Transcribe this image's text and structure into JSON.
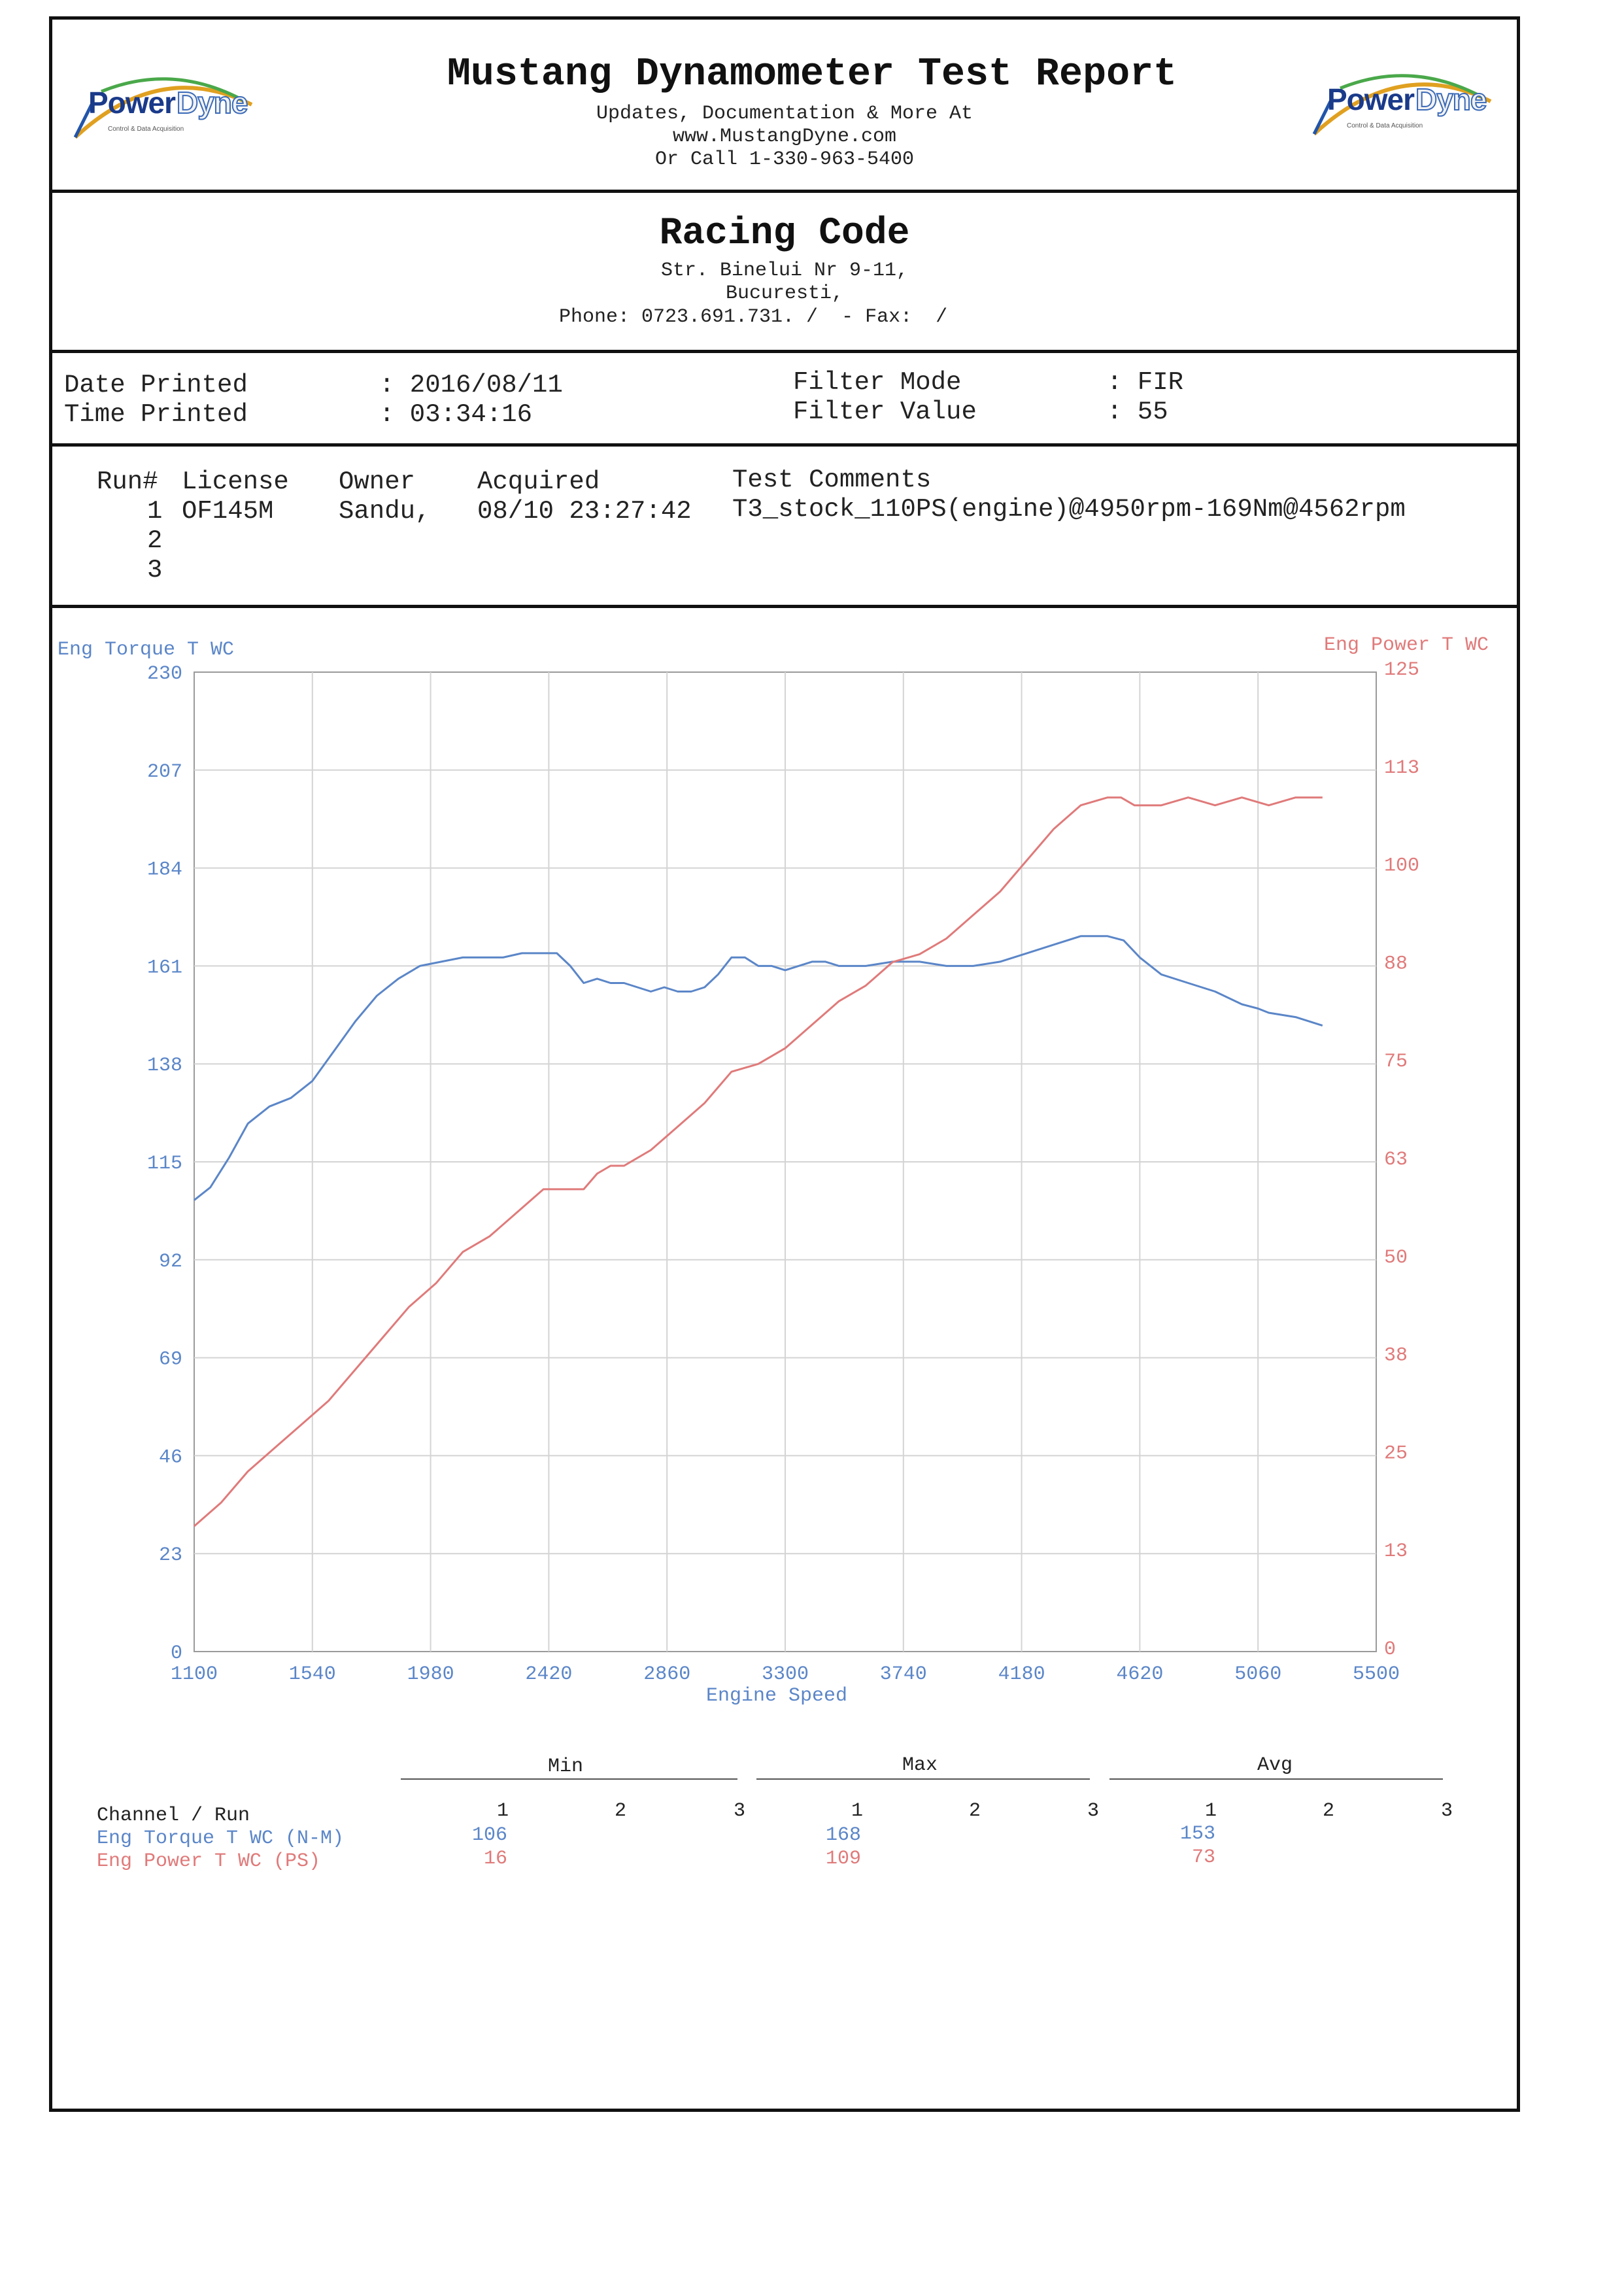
{
  "header": {
    "title": "Mustang Dynamometer Test Report",
    "line1": "Updates, Documentation & More At",
    "line2": "www.MustangDyne.com",
    "line3": "Or Call 1-330-963-5400",
    "logo_left": {
      "brand_a": "Power",
      "brand_b": "Dyne",
      "tagline": "Control & Data Acquisition"
    },
    "logo_right": {
      "brand_a": "Power",
      "brand_b": "Dyne",
      "tagline": "Control & Data Acquisition"
    }
  },
  "shop": {
    "name": "Racing Code",
    "address1": "Str. Binelui Nr 9-11,",
    "address2": "Bucuresti,",
    "phone_line": "Phone: 0723.691.731. /  - Fax:  /"
  },
  "print_info": {
    "date_label": "Date Printed",
    "date_value": ": 2016/08/11",
    "time_label": "Time Printed",
    "time_value": ": 03:34:16",
    "filter_mode_label": "Filter Mode",
    "filter_mode_value": ": FIR",
    "filter_value_label": "Filter Value",
    "filter_value_value": ": 55"
  },
  "runs": {
    "headers": {
      "run": "Run#",
      "license": "License",
      "owner": "Owner",
      "acquired": "Acquired",
      "comments": "Test Comments"
    },
    "rows": [
      {
        "run": "1",
        "license": "OF145M",
        "owner": "Sandu,",
        "acquired": "08/10 23:27:42",
        "comments": "T3_stock_110PS(engine)@4950rpm-169Nm@4562rpm"
      },
      {
        "run": "2",
        "license": "",
        "owner": "",
        "acquired": "",
        "comments": ""
      },
      {
        "run": "3",
        "license": "",
        "owner": "",
        "acquired": "",
        "comments": ""
      }
    ]
  },
  "chart_data": {
    "type": "line",
    "xlabel": "Engine Speed",
    "ylabel_left": "Eng Torque T WC",
    "ylabel_right": "Eng Power T WC",
    "xlim": [
      1100,
      5500
    ],
    "ylim_left": [
      0,
      230
    ],
    "ylim_right": [
      0,
      125
    ],
    "x_ticks": [
      "1100",
      "1540",
      "1980",
      "2420",
      "2860",
      "3300",
      "3740",
      "4180",
      "4620",
      "5060",
      "5500"
    ],
    "y_ticks_left": [
      "0",
      "23",
      "46",
      "69",
      "92",
      "115",
      "138",
      "161",
      "184",
      "207",
      "230"
    ],
    "y_ticks_right": [
      "0",
      "13",
      "25",
      "38",
      "50",
      "63",
      "75",
      "88",
      "100",
      "113",
      "125"
    ],
    "grid": true,
    "colors": {
      "torque": "#5b86c8",
      "power": "#e07a7a"
    },
    "series": [
      {
        "name": "Eng Torque T WC",
        "axis": "left",
        "x": [
          1100,
          1160,
          1230,
          1300,
          1380,
          1460,
          1540,
          1620,
          1700,
          1780,
          1860,
          1940,
          2020,
          2100,
          2180,
          2250,
          2320,
          2400,
          2450,
          2500,
          2550,
          2600,
          2650,
          2700,
          2750,
          2800,
          2850,
          2900,
          2950,
          3000,
          3050,
          3100,
          3150,
          3200,
          3250,
          3300,
          3350,
          3400,
          3450,
          3500,
          3600,
          3700,
          3800,
          3900,
          4000,
          4100,
          4200,
          4300,
          4400,
          4500,
          4560,
          4620,
          4700,
          4800,
          4900,
          5000,
          5060,
          5100,
          5200,
          5300
        ],
        "y": [
          106,
          109,
          116,
          124,
          128,
          130,
          134,
          141,
          148,
          154,
          158,
          161,
          162,
          163,
          163,
          163,
          164,
          164,
          164,
          161,
          157,
          158,
          157,
          157,
          156,
          155,
          156,
          155,
          155,
          156,
          159,
          163,
          163,
          161,
          161,
          160,
          161,
          162,
          162,
          161,
          161,
          162,
          162,
          161,
          161,
          162,
          164,
          166,
          168,
          168,
          167,
          163,
          159,
          157,
          155,
          152,
          151,
          150,
          149,
          147
        ]
      },
      {
        "name": "Eng Power T WC",
        "axis": "right",
        "x": [
          1100,
          1200,
          1300,
          1400,
          1500,
          1600,
          1700,
          1800,
          1900,
          2000,
          2100,
          2200,
          2300,
          2400,
          2500,
          2550,
          2600,
          2650,
          2700,
          2800,
          2900,
          3000,
          3100,
          3200,
          3250,
          3300,
          3400,
          3500,
          3600,
          3700,
          3800,
          3900,
          4000,
          4100,
          4200,
          4300,
          4400,
          4500,
          4550,
          4600,
          4700,
          4800,
          4900,
          5000,
          5100,
          5200,
          5300
        ],
        "y": [
          16,
          19,
          23,
          26,
          29,
          32,
          36,
          40,
          44,
          47,
          51,
          53,
          56,
          59,
          59,
          59,
          61,
          62,
          62,
          64,
          67,
          70,
          74,
          75,
          76,
          77,
          80,
          83,
          85,
          88,
          89,
          91,
          94,
          97,
          101,
          105,
          108,
          109,
          109,
          108,
          108,
          109,
          108,
          109,
          108,
          109,
          109
        ]
      }
    ]
  },
  "summary": {
    "group_min": "Min",
    "group_max": "Max",
    "group_avg": "Avg",
    "channel_header": "Channel / Run",
    "run_labels": [
      "1",
      "2",
      "3"
    ],
    "rows": [
      {
        "channel": "Eng Torque T WC (N-M)",
        "min": "106",
        "max": "168",
        "avg": "153"
      },
      {
        "channel": "Eng Power T WC (PS)",
        "min": "16",
        "max": "109",
        "avg": "73"
      }
    ]
  }
}
